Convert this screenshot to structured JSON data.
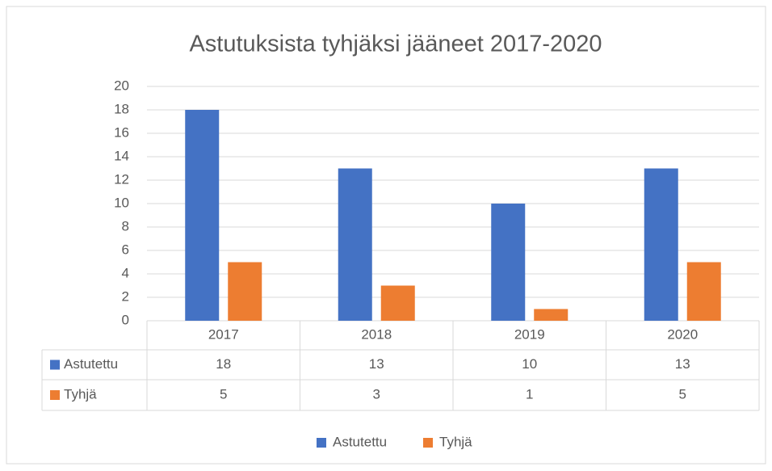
{
  "chart_data": {
    "type": "bar",
    "title": "Astutuksista tyhjäksi jääneet 2017-2020",
    "categories": [
      "2017",
      "2018",
      "2019",
      "2020"
    ],
    "series": [
      {
        "name": "Astutettu",
        "color": "#4472c4",
        "values": [
          18,
          13,
          10,
          13
        ]
      },
      {
        "name": "Tyhjä",
        "color": "#ed7d31",
        "values": [
          5,
          3,
          1,
          5
        ]
      }
    ],
    "ylim": [
      0,
      20
    ],
    "yticks": [
      0,
      2,
      4,
      6,
      8,
      10,
      12,
      14,
      16,
      18,
      20
    ],
    "grid": true,
    "legend": "bottom"
  }
}
